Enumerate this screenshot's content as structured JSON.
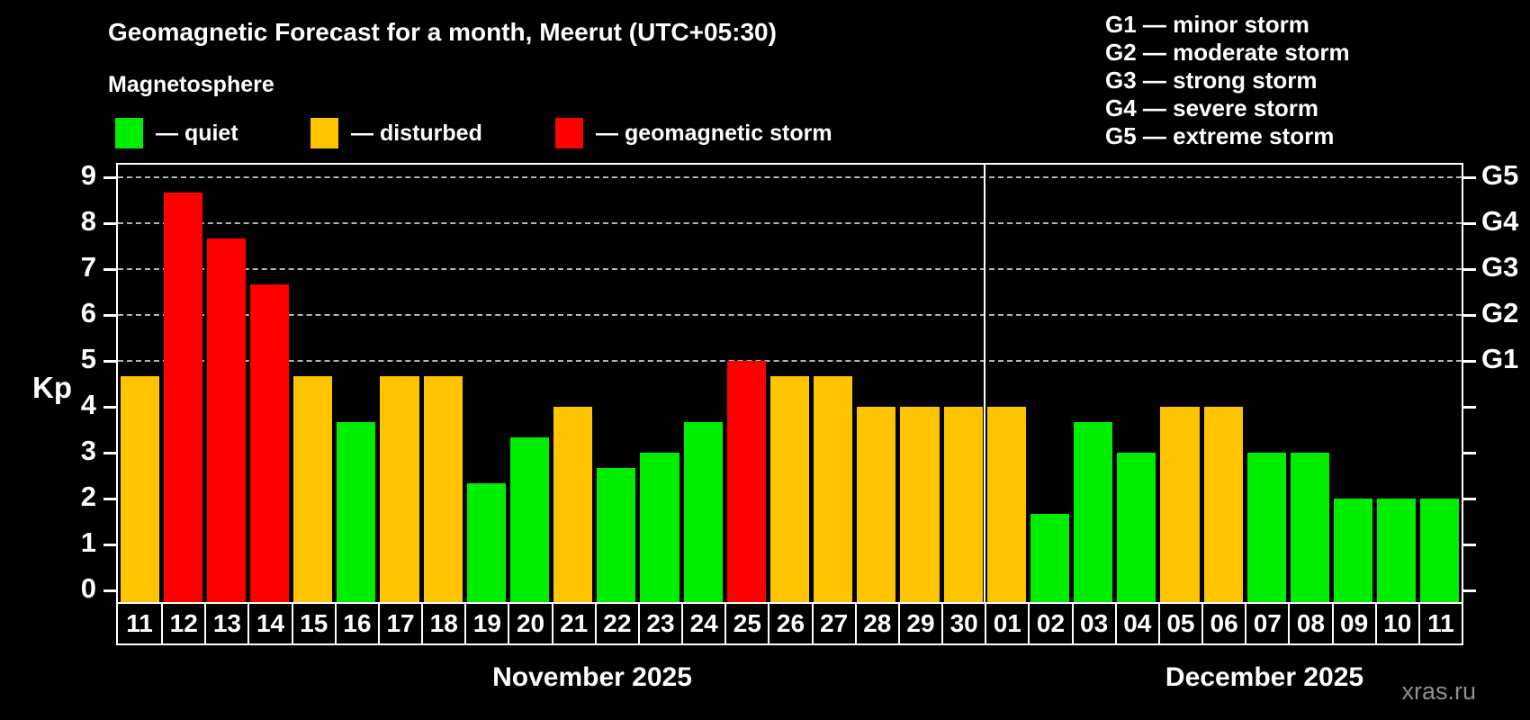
{
  "header": {
    "title": "Geomagnetic Forecast for a month, Meerut (UTC+05:30)",
    "subtitle": "Magnetosphere"
  },
  "legend": {
    "items": [
      {
        "name": "quiet",
        "label": "— quiet",
        "color": "#00ee00"
      },
      {
        "name": "disturbed",
        "label": "— disturbed",
        "color": "#ffc400"
      },
      {
        "name": "storm",
        "label": "— geomagnetic storm",
        "color": "#ff0000"
      }
    ]
  },
  "storm_scale": {
    "items": [
      "G1 — minor storm",
      "G2 — moderate storm",
      "G3 — strong storm",
      "G4 — severe storm",
      "G5 — extreme storm"
    ]
  },
  "watermark": "xras.ru",
  "chart_data": {
    "type": "bar",
    "ylabel": "Kp",
    "ylim": [
      -0.26,
      9.28
    ],
    "y_ticks": [
      0,
      1,
      2,
      3,
      4,
      5,
      6,
      7,
      8,
      9
    ],
    "gridlines_at": [
      5,
      6,
      7,
      8,
      9
    ],
    "grid": "dashed horizontal at G-levels only",
    "right_axis_labels": [
      {
        "label": "G5",
        "value": 9
      },
      {
        "label": "G4",
        "value": 8
      },
      {
        "label": "G3",
        "value": 7
      },
      {
        "label": "G2",
        "value": 6
      },
      {
        "label": "G1",
        "value": 5
      }
    ],
    "months": [
      {
        "label": "November 2025",
        "days": 20
      },
      {
        "label": "December 2025",
        "days": 11
      }
    ],
    "categories": [
      "11",
      "12",
      "13",
      "14",
      "15",
      "16",
      "17",
      "18",
      "19",
      "20",
      "21",
      "22",
      "23",
      "24",
      "25",
      "26",
      "27",
      "28",
      "29",
      "30",
      "01",
      "02",
      "03",
      "04",
      "05",
      "06",
      "07",
      "08",
      "09",
      "10",
      "11"
    ],
    "values": [
      4.67,
      8.67,
      7.67,
      6.67,
      4.67,
      3.67,
      4.67,
      4.67,
      2.33,
      3.33,
      4.0,
      2.67,
      3.0,
      3.67,
      5.0,
      4.67,
      4.67,
      4.0,
      4.0,
      4.0,
      4.0,
      1.67,
      3.67,
      3.0,
      4.0,
      4.0,
      3.0,
      3.0,
      2.0,
      2.0,
      2.0
    ],
    "statuses": [
      "disturbed",
      "storm",
      "storm",
      "storm",
      "disturbed",
      "quiet",
      "disturbed",
      "disturbed",
      "quiet",
      "quiet",
      "disturbed",
      "quiet",
      "quiet",
      "quiet",
      "storm",
      "disturbed",
      "disturbed",
      "disturbed",
      "disturbed",
      "disturbed",
      "disturbed",
      "quiet",
      "quiet",
      "quiet",
      "disturbed",
      "disturbed",
      "quiet",
      "quiet",
      "quiet",
      "quiet",
      "quiet"
    ],
    "status_colors": {
      "quiet": "#00ee00",
      "disturbed": "#ffc400",
      "storm": "#ff0000"
    },
    "axis_color": "#ffffff",
    "grid_color": "#b4b4b4",
    "background": "#000000"
  }
}
